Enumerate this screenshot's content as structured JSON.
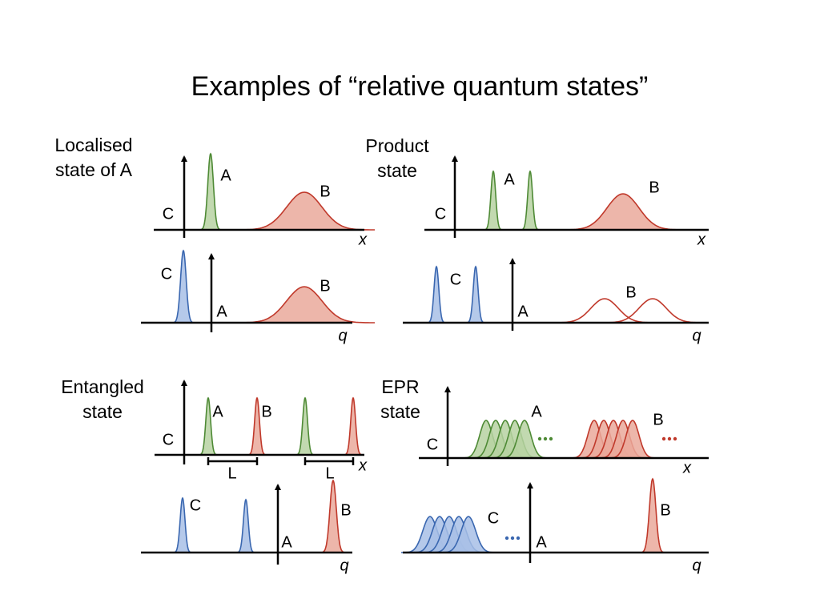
{
  "title": "Examples of “relative quantum states”",
  "panels": [
    {
      "caption": [
        "Localised",
        "state of A"
      ],
      "plots": [
        {
          "labels": [
            "C",
            "A",
            "B",
            "x"
          ]
        },
        {
          "labels": [
            "C",
            "A",
            "B",
            "q"
          ]
        }
      ]
    },
    {
      "caption": [
        "Product",
        "state"
      ],
      "plots": [
        {
          "labels": [
            "C",
            "A",
            "B",
            "x"
          ]
        },
        {
          "labels": [
            "C",
            "A",
            "B",
            "q"
          ]
        }
      ]
    },
    {
      "caption": [
        "Entangled",
        "state"
      ],
      "plots": [
        {
          "labels": [
            "C",
            "A",
            "B",
            "x",
            "L",
            "L"
          ]
        },
        {
          "labels": [
            "C",
            "A",
            "B",
            "q"
          ]
        }
      ]
    },
    {
      "caption": [
        "EPR",
        "state"
      ],
      "plots": [
        {
          "labels": [
            "C",
            "A",
            "B",
            "x"
          ]
        },
        {
          "labels": [
            "C",
            "A",
            "B",
            "q"
          ]
        }
      ]
    }
  ]
}
